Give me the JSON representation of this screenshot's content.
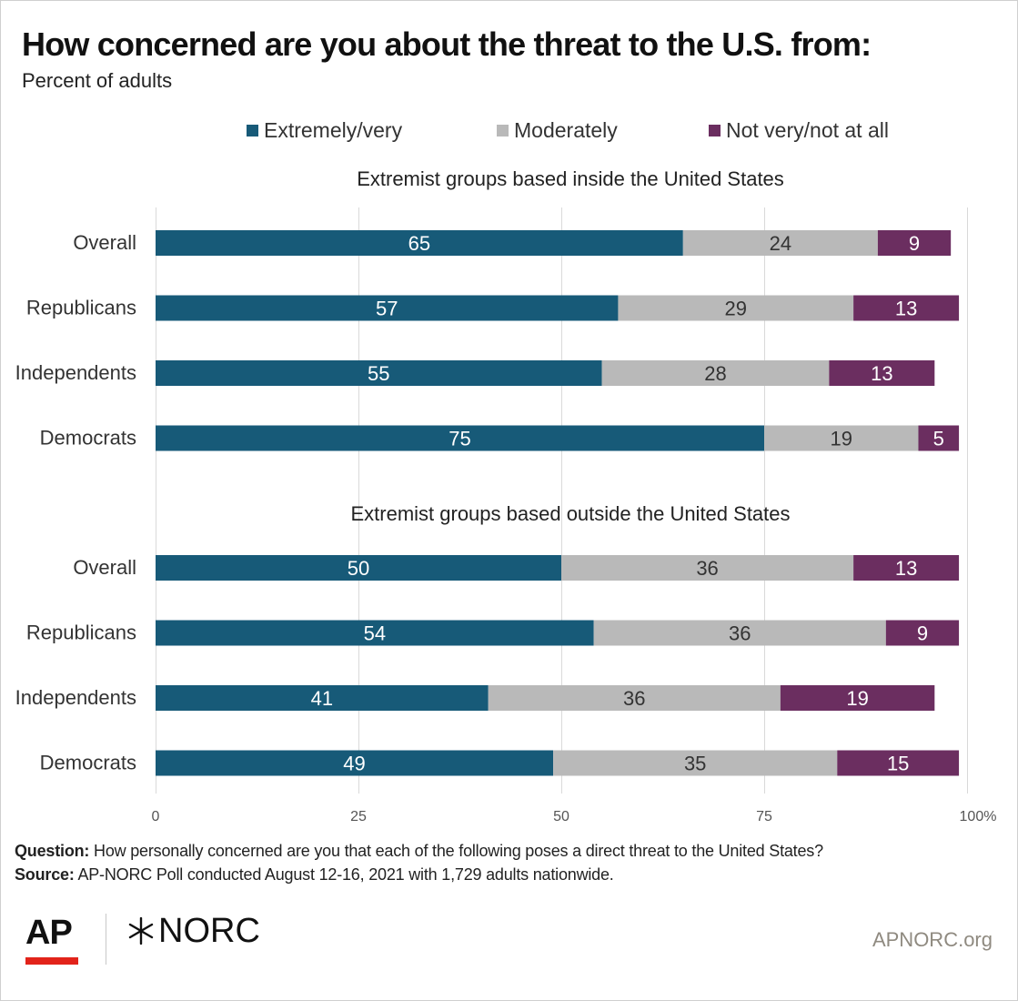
{
  "chart_data": {
    "type": "bar",
    "orientation": "horizontal",
    "stacked": true,
    "title": "How concerned are you about the threat to the U.S. from:",
    "subtitle": "Percent of adults",
    "legend": {
      "placement": "top",
      "items": [
        {
          "name": "Extremely/very",
          "color": "#175a78"
        },
        {
          "name": "Moderately",
          "color": "#b9b9b9"
        },
        {
          "name": "Not very/not at all",
          "color": "#6b2e60"
        }
      ]
    },
    "xlim": [
      0,
      100
    ],
    "x_ticks": [
      "0",
      "25",
      "50",
      "75",
      "100%"
    ],
    "grid": "vertical",
    "panels": [
      {
        "title": "Extremist groups based inside the United States",
        "categories": [
          "Overall",
          "Republicans",
          "Independents",
          "Democrats"
        ],
        "series": [
          {
            "name": "Extremely/very",
            "values": [
              65,
              57,
              55,
              75
            ]
          },
          {
            "name": "Moderately",
            "values": [
              24,
              29,
              28,
              19
            ]
          },
          {
            "name": "Not very/not at all",
            "values": [
              9,
              13,
              13,
              5
            ]
          }
        ]
      },
      {
        "title": "Extremist groups based outside the United States",
        "categories": [
          "Overall",
          "Republicans",
          "Independents",
          "Democrats"
        ],
        "series": [
          {
            "name": "Extremely/very",
            "values": [
              50,
              54,
              41,
              49
            ]
          },
          {
            "name": "Moderately",
            "values": [
              36,
              36,
              36,
              35
            ]
          },
          {
            "name": "Not very/not at all",
            "values": [
              13,
              9,
              19,
              15
            ]
          }
        ]
      }
    ]
  },
  "notes": {
    "question_label": "Question:",
    "question_text": "How personally concerned are you that each of the following poses a direct threat to the United States?",
    "source_label": "Source:",
    "source_text": "AP-NORC Poll conducted August 12-16, 2021 with 1,729 adults nationwide."
  },
  "branding": {
    "ap_logo_text": "AP",
    "norc_logo_text": "NORC",
    "site_url": "APNORC.org",
    "ap_accent_color": "#e2231a"
  }
}
